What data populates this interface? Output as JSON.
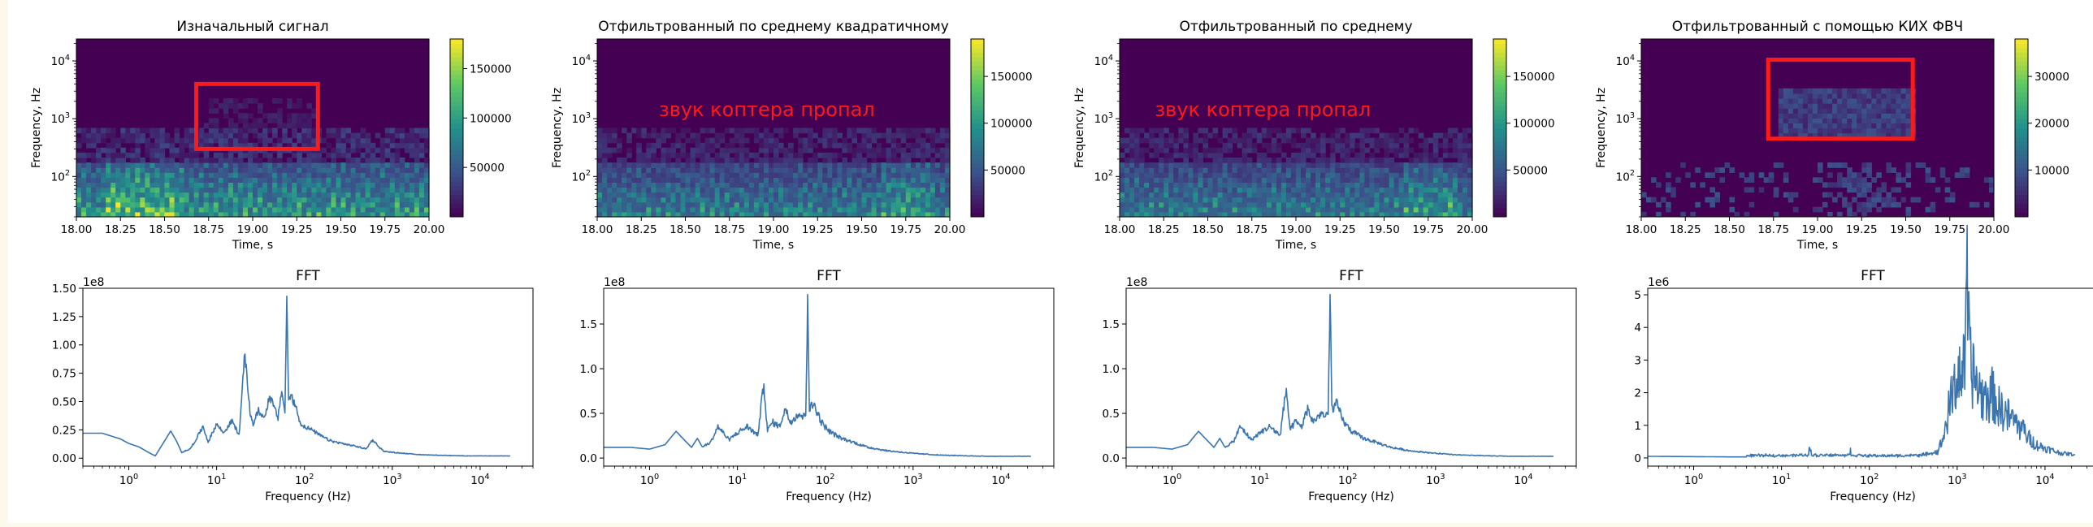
{
  "figure": {
    "annotation_text": "звук коптера пропал",
    "annotation_color": "#ff1a1a",
    "spectrogram_colormap": "viridis",
    "fft_line_color": "#3a75b0"
  },
  "chart_data": [
    {
      "type": "heatmap",
      "title": "Изначальный сигнал",
      "xlabel": "Time, s",
      "ylabel": "Frequency, Hz",
      "xlim": [
        18.0,
        20.0
      ],
      "ylim": [
        20,
        24000
      ],
      "yscale": "log",
      "xticks": [
        "18.00",
        "18.25",
        "18.50",
        "18.75",
        "19.00",
        "19.25",
        "19.50",
        "19.75",
        "20.00"
      ],
      "yticks": [
        "10^2",
        "10^3",
        "10^4"
      ],
      "colorbar": {
        "min": 0,
        "max": 180000,
        "ticks": [
          "50000",
          "100000",
          "150000"
        ]
      },
      "intensity": "high",
      "highlight_box": {
        "time": [
          18.68,
          19.37
        ],
        "freq": [
          300,
          4000
        ]
      }
    },
    {
      "type": "heatmap",
      "title": "Отфильтрованный по среднему квадратичному",
      "xlabel": "Time, s",
      "ylabel": "Frequency, Hz",
      "xlim": [
        18.0,
        20.0
      ],
      "ylim": [
        20,
        24000
      ],
      "yscale": "log",
      "xticks": [
        "18.00",
        "18.25",
        "18.50",
        "18.75",
        "19.00",
        "19.25",
        "19.50",
        "19.75",
        "20.00"
      ],
      "yticks": [
        "10^2",
        "10^3",
        "10^4"
      ],
      "colorbar": {
        "min": 0,
        "max": 190000,
        "ticks": [
          "50000",
          "100000",
          "150000"
        ]
      },
      "intensity": "medium",
      "annotation": {
        "text": "звук коптера пропал",
        "time": 18.35,
        "freq": 1100
      }
    },
    {
      "type": "heatmap",
      "title": "Отфильтрованный по среднему",
      "xlabel": "Time, s",
      "ylabel": "Frequency, Hz",
      "xlim": [
        18.0,
        20.0
      ],
      "ylim": [
        20,
        24000
      ],
      "yscale": "log",
      "xticks": [
        "18.00",
        "18.25",
        "18.50",
        "18.75",
        "19.00",
        "19.25",
        "19.50",
        "19.75",
        "20.00"
      ],
      "yticks": [
        "10^2",
        "10^3",
        "10^4"
      ],
      "colorbar": {
        "min": 0,
        "max": 190000,
        "ticks": [
          "50000",
          "100000",
          "150000"
        ]
      },
      "intensity": "medium",
      "annotation": {
        "text": "звук коптера пропал",
        "time": 18.2,
        "freq": 1100
      }
    },
    {
      "type": "heatmap",
      "title": "Отфильтрованный с помощью КИХ ФВЧ",
      "xlabel": "Time, s",
      "ylabel": "Frequency, Hz",
      "xlim": [
        18.0,
        20.0
      ],
      "ylim": [
        20,
        24000
      ],
      "yscale": "log",
      "xticks": [
        "18.00",
        "18.25",
        "18.50",
        "18.75",
        "19.00",
        "19.25",
        "19.50",
        "19.75",
        "20.00"
      ],
      "yticks": [
        "10^2",
        "10^3",
        "10^4"
      ],
      "colorbar": {
        "min": 0,
        "max": 38000,
        "ticks": [
          "10000",
          "20000",
          "30000"
        ]
      },
      "intensity": "highpass",
      "highlight_box": {
        "time": [
          18.72,
          19.54
        ],
        "freq": [
          450,
          10500
        ]
      }
    },
    {
      "type": "line",
      "title": "FFT",
      "xlabel": "Frequency (Hz)",
      "ylabel": "",
      "xscale": "log",
      "xlim": [
        0.3,
        40000
      ],
      "ylim": [
        -0.07,
        1.5
      ],
      "exponent_label": "1e8",
      "xticks": [
        "10^0",
        "10^1",
        "10^2",
        "10^3",
        "10^4"
      ],
      "yticks": [
        "0.00",
        "0.25",
        "0.50",
        "0.75",
        "1.00",
        "1.25",
        "1.50"
      ],
      "x": [
        0.3,
        0.5,
        0.8,
        1.0,
        1.3,
        1.6,
        2.0,
        2.5,
        3.0,
        3.5,
        4.0,
        5.0,
        6.0,
        7.0,
        8.0,
        10,
        12,
        15,
        18,
        21,
        24,
        26,
        30,
        35,
        40,
        45,
        50,
        55,
        60,
        63,
        66,
        70,
        80,
        90,
        100,
        120,
        150,
        200,
        300,
        400,
        500,
        600,
        700,
        800,
        1000,
        2000,
        5000,
        10000,
        22000
      ],
      "y": [
        0.22,
        0.22,
        0.17,
        0.13,
        0.1,
        0.06,
        0.02,
        0.14,
        0.24,
        0.15,
        0.05,
        0.08,
        0.18,
        0.28,
        0.14,
        0.3,
        0.22,
        0.33,
        0.2,
        0.92,
        0.4,
        0.3,
        0.42,
        0.35,
        0.55,
        0.45,
        0.35,
        0.6,
        0.4,
        1.43,
        0.5,
        0.55,
        0.45,
        0.3,
        0.28,
        0.25,
        0.2,
        0.15,
        0.12,
        0.1,
        0.08,
        0.16,
        0.1,
        0.06,
        0.05,
        0.03,
        0.02,
        0.02,
        0.02
      ],
      "noise": 0.07
    },
    {
      "type": "line",
      "title": "FFT",
      "xlabel": "Frequency (Hz)",
      "ylabel": "",
      "xscale": "log",
      "xlim": [
        0.3,
        40000
      ],
      "ylim": [
        -0.09,
        1.9
      ],
      "exponent_label": "1e8",
      "xticks": [
        "10^0",
        "10^1",
        "10^2",
        "10^3",
        "10^4"
      ],
      "yticks": [
        "0.0",
        "0.5",
        "1.0",
        "1.5"
      ],
      "x": [
        0.3,
        0.6,
        1.0,
        1.5,
        2.0,
        2.5,
        3.0,
        3.5,
        4.0,
        5.0,
        6.0,
        8.0,
        10,
        13,
        17,
        20,
        22,
        25,
        30,
        35,
        40,
        50,
        56,
        60,
        63,
        66,
        75,
        90,
        110,
        150,
        200,
        300,
        500,
        1000,
        2000,
        5000,
        10000,
        22000
      ],
      "y": [
        0.12,
        0.12,
        0.1,
        0.15,
        0.3,
        0.2,
        0.12,
        0.22,
        0.12,
        0.18,
        0.35,
        0.2,
        0.28,
        0.35,
        0.25,
        0.83,
        0.3,
        0.4,
        0.35,
        0.55,
        0.4,
        0.5,
        0.45,
        0.5,
        1.83,
        0.55,
        0.6,
        0.4,
        0.3,
        0.22,
        0.18,
        0.12,
        0.08,
        0.05,
        0.03,
        0.02,
        0.02,
        0.02
      ],
      "noise": 0.1
    },
    {
      "type": "line",
      "title": "FFT",
      "xlabel": "Frequency (Hz)",
      "ylabel": "",
      "xscale": "log",
      "xlim": [
        0.3,
        40000
      ],
      "ylim": [
        -0.09,
        1.9
      ],
      "exponent_label": "1e8",
      "xticks": [
        "10^0",
        "10^1",
        "10^2",
        "10^3",
        "10^4"
      ],
      "yticks": [
        "0.0",
        "0.5",
        "1.0",
        "1.5"
      ],
      "x": [
        0.3,
        0.6,
        1.0,
        1.5,
        2.0,
        2.5,
        3.0,
        3.5,
        4.0,
        5.0,
        6.0,
        8.0,
        10,
        13,
        17,
        20,
        22,
        25,
        30,
        35,
        40,
        50,
        56,
        60,
        63,
        66,
        75,
        90,
        110,
        150,
        200,
        300,
        500,
        1000,
        2000,
        5000,
        10000,
        22000
      ],
      "y": [
        0.12,
        0.12,
        0.1,
        0.15,
        0.3,
        0.2,
        0.12,
        0.22,
        0.12,
        0.18,
        0.35,
        0.2,
        0.28,
        0.35,
        0.25,
        0.78,
        0.3,
        0.4,
        0.35,
        0.55,
        0.4,
        0.5,
        0.45,
        0.5,
        1.83,
        0.55,
        0.6,
        0.4,
        0.3,
        0.22,
        0.18,
        0.12,
        0.08,
        0.05,
        0.03,
        0.02,
        0.02,
        0.02
      ],
      "noise": 0.1
    },
    {
      "type": "line",
      "title": "FFT",
      "xlabel": "Frequency (Hz)",
      "ylabel": "",
      "xscale": "log",
      "xlim": [
        0.3,
        40000
      ],
      "ylim": [
        -0.25,
        5.2
      ],
      "exponent_label": "1e6",
      "xticks": [
        "10^0",
        "10^1",
        "10^2",
        "10^3",
        "10^4"
      ],
      "yticks": [
        "0",
        "1",
        "2",
        "3",
        "4",
        "5"
      ],
      "x": [
        0.3,
        1.0,
        3.0,
        10,
        20,
        21,
        22,
        50,
        60,
        61,
        62,
        100,
        200,
        400,
        600,
        700,
        800,
        900,
        1000,
        1100,
        1200,
        1300,
        1400,
        1600,
        1800,
        2000,
        2500,
        3000,
        4000,
        5000,
        6000,
        8000,
        10000,
        15000,
        22000
      ],
      "y": [
        0.05,
        0.04,
        0.03,
        0.04,
        0.05,
        0.3,
        0.05,
        0.05,
        0.05,
        0.3,
        0.05,
        0.03,
        0.03,
        0.05,
        0.15,
        0.6,
        1.4,
        2.0,
        2.5,
        2.7,
        2.6,
        5.0,
        2.8,
        2.4,
        2.0,
        1.8,
        1.9,
        1.5,
        1.2,
        1.0,
        0.7,
        0.4,
        0.3,
        0.15,
        0.1
      ],
      "noise": 0.45
    }
  ]
}
